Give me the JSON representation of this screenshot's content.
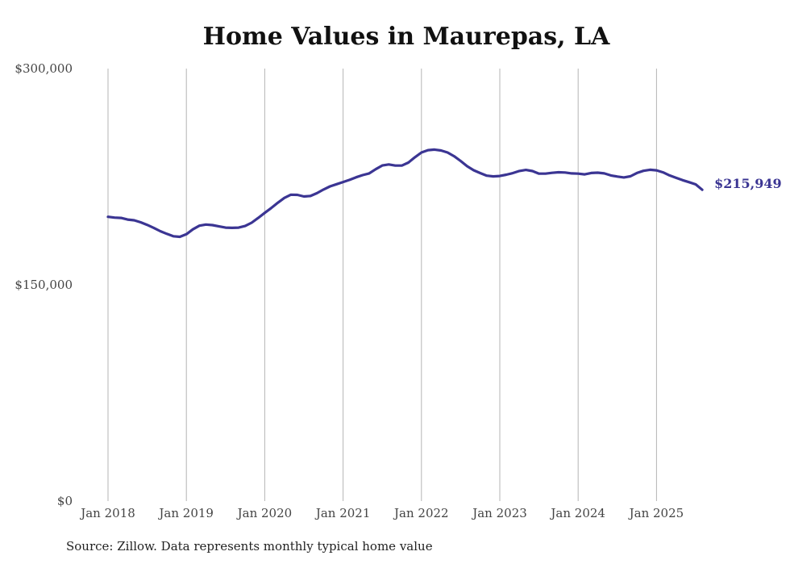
{
  "colors": {
    "line": "#3b3593",
    "grid": "#b5b5b5",
    "text": "#444444"
  },
  "chart_data": {
    "type": "line",
    "title": "Home Values in Maurepas, LA",
    "source": "Source: Zillow. Data represents monthly typical home value",
    "ylim": [
      0,
      300000
    ],
    "ytick_values": [
      0,
      150000,
      300000
    ],
    "ytick_labels": [
      "$0",
      "$150,000",
      "$300,000"
    ],
    "xtick_dates": [
      "2018-01",
      "2019-01",
      "2020-01",
      "2021-01",
      "2022-01",
      "2023-01",
      "2024-01",
      "2025-01"
    ],
    "xtick_labels": [
      "Jan 2018",
      "Jan 2019",
      "Jan 2020",
      "Jan 2021",
      "Jan 2022",
      "Jan 2023",
      "Jan 2024",
      "Jan 2025"
    ],
    "grid": true,
    "end_label": "$215,949",
    "series": [
      {
        "x": [
          "2018-01",
          "2018-02",
          "2018-03",
          "2018-04",
          "2018-05",
          "2018-06",
          "2018-07",
          "2018-08",
          "2018-09",
          "2018-10",
          "2018-11",
          "2018-12",
          "2019-01",
          "2019-02",
          "2019-03",
          "2019-04",
          "2019-05",
          "2019-06",
          "2019-07",
          "2019-08",
          "2019-09",
          "2019-10",
          "2019-11",
          "2019-12",
          "2020-01",
          "2020-02",
          "2020-03",
          "2020-04",
          "2020-05",
          "2020-06",
          "2020-07",
          "2020-08",
          "2020-09",
          "2020-10",
          "2020-11",
          "2020-12",
          "2021-01",
          "2021-02",
          "2021-03",
          "2021-04",
          "2021-05",
          "2021-06",
          "2021-07",
          "2021-08",
          "2021-09",
          "2021-10",
          "2021-11",
          "2021-12",
          "2022-01",
          "2022-02",
          "2022-03",
          "2022-04",
          "2022-05",
          "2022-06",
          "2022-07",
          "2022-08",
          "2022-09",
          "2022-10",
          "2022-11",
          "2022-12",
          "2023-01",
          "2023-02",
          "2023-03",
          "2023-04",
          "2023-05",
          "2023-06",
          "2023-07",
          "2023-08",
          "2023-09",
          "2023-10",
          "2023-11",
          "2023-12",
          "2024-01",
          "2024-02",
          "2024-03",
          "2024-04",
          "2024-05",
          "2024-06",
          "2024-07",
          "2024-08",
          "2024-09",
          "2024-10",
          "2024-11",
          "2024-12",
          "2025-01",
          "2025-02",
          "2025-03",
          "2025-04",
          "2025-05",
          "2025-06",
          "2025-07",
          "2025-08"
        ],
        "values": [
          197200,
          196600,
          196400,
          195300,
          194800,
          193400,
          191600,
          189500,
          187200,
          185400,
          183700,
          183300,
          185100,
          188500,
          191000,
          191800,
          191400,
          190500,
          189700,
          189500,
          189700,
          190800,
          193100,
          196400,
          199900,
          203300,
          206900,
          210300,
          212500,
          212400,
          211300,
          211600,
          213600,
          216100,
          218300,
          219800,
          221300,
          222800,
          224600,
          226100,
          227300,
          230200,
          232800,
          233500,
          232700,
          232700,
          234800,
          238500,
          241800,
          243400,
          243800,
          243200,
          241800,
          239200,
          235900,
          232300,
          229500,
          227500,
          225700,
          225200,
          225500,
          226400,
          227500,
          229000,
          229700,
          228900,
          227100,
          227100,
          227700,
          228100,
          227900,
          227300,
          227100,
          226600,
          227600,
          227800,
          227300,
          225900,
          225100,
          224500,
          225300,
          227600,
          229100,
          229800,
          229400,
          228000,
          225900,
          224200,
          222600,
          221200,
          219700,
          215949
        ]
      }
    ]
  }
}
